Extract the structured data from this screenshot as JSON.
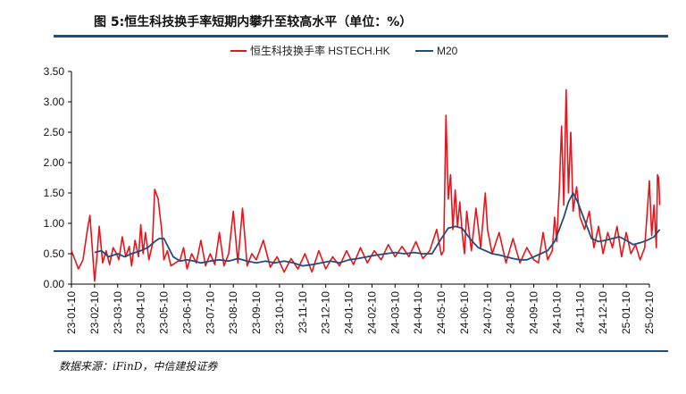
{
  "title": "图 5:恒生科技换手率短期内攀升至较高水平（单位：%）",
  "source": "数据来源：iFinD，中信建投证券",
  "colors": {
    "series_red": "#e8141b",
    "series_blue": "#1f4e79",
    "rule": "#1f4e79",
    "axis": "#000000"
  },
  "chart_data": {
    "type": "line",
    "title": "",
    "xlabel": "",
    "ylabel": "",
    "ylim": [
      0,
      3.5
    ],
    "yticks": [
      "0.00",
      "0.50",
      "1.00",
      "1.50",
      "2.00",
      "2.50",
      "3.00",
      "3.50"
    ],
    "xticks": [
      "23-01-10",
      "23-02-10",
      "23-03-10",
      "23-04-10",
      "23-05-10",
      "23-06-10",
      "23-07-10",
      "23-08-10",
      "23-09-10",
      "23-10-10",
      "23-11-10",
      "23-12-10",
      "24-01-10",
      "24-02-10",
      "24-03-10",
      "24-04-10",
      "24-05-10",
      "24-06-10",
      "24-07-10",
      "24-08-10",
      "24-09-10",
      "24-10-10",
      "24-11-10",
      "24-12-10",
      "25-01-10",
      "25-02-10"
    ],
    "legend_position": "top-center",
    "grid": false,
    "series": [
      {
        "name": "恒生科技换手率 HSTECH.HK",
        "color": "#e8141b",
        "x": [
          0,
          0.3,
          0.5,
          0.7,
          0.8,
          1.0,
          1.1,
          1.2,
          1.35,
          1.5,
          1.65,
          1.8,
          1.95,
          2.05,
          2.2,
          2.35,
          2.5,
          2.6,
          2.75,
          2.9,
          3.0,
          3.1,
          3.2,
          3.35,
          3.5,
          3.6,
          3.75,
          3.9,
          4.0,
          4.15,
          4.3,
          4.5,
          4.7,
          4.85,
          5.0,
          5.2,
          5.4,
          5.6,
          5.8,
          6.0,
          6.2,
          6.4,
          6.6,
          6.8,
          7.0,
          7.2,
          7.4,
          7.6,
          7.8,
          8.0,
          8.3,
          8.6,
          8.9,
          9.2,
          9.5,
          9.8,
          10.1,
          10.4,
          10.7,
          11.0,
          11.3,
          11.6,
          11.9,
          12.2,
          12.5,
          12.8,
          13.1,
          13.4,
          13.7,
          14.0,
          14.3,
          14.6,
          14.9,
          15.2,
          15.5,
          15.8,
          16.0,
          16.1,
          16.2,
          16.3,
          16.4,
          16.5,
          16.6,
          16.7,
          16.8,
          16.9,
          17.0,
          17.1,
          17.3,
          17.5,
          17.7,
          17.9,
          18.0,
          18.2,
          18.5,
          18.8,
          19.1,
          19.4,
          19.7,
          20.0,
          20.2,
          20.4,
          20.6,
          20.8,
          20.9,
          21.0,
          21.05,
          21.1,
          21.2,
          21.3,
          21.4,
          21.5,
          21.6,
          21.7,
          21.85,
          22.0,
          22.2,
          22.4,
          22.6,
          22.8,
          23.0,
          23.2,
          23.4,
          23.6,
          23.8,
          24.0,
          24.2,
          24.4,
          24.6,
          24.8,
          25.0,
          25.1,
          25.2,
          25.3,
          25.35,
          25.4,
          25.45
        ],
        "values": [
          0.55,
          0.25,
          0.4,
          0.92,
          1.13,
          0.05,
          0.45,
          0.95,
          0.35,
          0.55,
          0.32,
          0.6,
          0.5,
          0.4,
          0.78,
          0.45,
          0.62,
          0.3,
          0.72,
          0.45,
          0.98,
          0.5,
          0.85,
          0.4,
          0.65,
          1.56,
          1.4,
          0.9,
          0.4,
          0.55,
          0.3,
          0.35,
          0.4,
          0.6,
          0.25,
          0.5,
          0.35,
          0.72,
          0.3,
          0.5,
          0.32,
          0.85,
          0.3,
          0.5,
          1.2,
          0.35,
          1.25,
          0.3,
          0.5,
          0.4,
          0.72,
          0.28,
          0.45,
          0.2,
          0.42,
          0.25,
          0.5,
          0.2,
          0.55,
          0.25,
          0.45,
          0.3,
          0.55,
          0.32,
          0.6,
          0.35,
          0.55,
          0.4,
          0.65,
          0.45,
          0.62,
          0.45,
          0.7,
          0.42,
          0.55,
          0.9,
          0.48,
          0.55,
          2.78,
          1.4,
          1.8,
          0.9,
          1.55,
          0.95,
          1.35,
          0.85,
          0.5,
          1.2,
          0.55,
          1.25,
          0.6,
          1.5,
          0.9,
          0.5,
          0.85,
          0.35,
          0.75,
          0.35,
          0.6,
          0.4,
          0.35,
          0.85,
          0.4,
          0.55,
          1.1,
          0.7,
          1.2,
          1.55,
          2.6,
          1.3,
          3.2,
          1.5,
          2.5,
          1.2,
          1.6,
          1.1,
          0.9,
          1.2,
          0.6,
          0.95,
          0.5,
          0.85,
          0.6,
          0.95,
          0.45,
          0.85,
          0.5,
          0.65,
          0.4,
          0.6,
          1.7,
          0.8,
          1.3,
          0.6,
          1.8,
          1.75,
          1.3
        ]
      },
      {
        "name": "M20",
        "color": "#1f4e79",
        "x": [
          1.0,
          1.3,
          1.6,
          2.0,
          2.3,
          2.6,
          3.0,
          3.3,
          3.6,
          3.8,
          4.0,
          4.2,
          4.4,
          4.7,
          5.0,
          5.3,
          5.6,
          6.0,
          6.4,
          6.8,
          7.2,
          7.6,
          8.0,
          8.4,
          8.8,
          9.2,
          9.6,
          10.0,
          10.4,
          10.8,
          11.2,
          11.6,
          12.0,
          12.4,
          12.8,
          13.2,
          13.6,
          14.0,
          14.4,
          14.8,
          15.2,
          15.6,
          16.0,
          16.3,
          16.6,
          16.9,
          17.1,
          17.3,
          17.6,
          17.9,
          18.2,
          18.5,
          18.8,
          19.1,
          19.4,
          19.7,
          20.0,
          20.3,
          20.6,
          20.9,
          21.1,
          21.3,
          21.5,
          21.7,
          21.9,
          22.1,
          22.3,
          22.5,
          22.8,
          23.1,
          23.4,
          23.7,
          24.0,
          24.3,
          24.6,
          24.9,
          25.2,
          25.45
        ],
        "values": [
          0.52,
          0.55,
          0.45,
          0.5,
          0.45,
          0.5,
          0.55,
          0.6,
          0.7,
          0.75,
          0.75,
          0.6,
          0.45,
          0.38,
          0.4,
          0.38,
          0.35,
          0.38,
          0.4,
          0.38,
          0.42,
          0.38,
          0.35,
          0.38,
          0.35,
          0.38,
          0.35,
          0.3,
          0.32,
          0.35,
          0.38,
          0.35,
          0.4,
          0.42,
          0.45,
          0.48,
          0.5,
          0.52,
          0.5,
          0.52,
          0.5,
          0.5,
          0.75,
          0.92,
          0.95,
          0.92,
          0.82,
          0.72,
          0.6,
          0.55,
          0.5,
          0.48,
          0.45,
          0.42,
          0.4,
          0.4,
          0.45,
          0.5,
          0.55,
          0.7,
          0.9,
          1.1,
          1.35,
          1.5,
          1.35,
          1.15,
          0.95,
          0.75,
          0.7,
          0.72,
          0.75,
          0.78,
          0.72,
          0.65,
          0.68,
          0.72,
          0.78,
          0.9
        ]
      }
    ]
  }
}
